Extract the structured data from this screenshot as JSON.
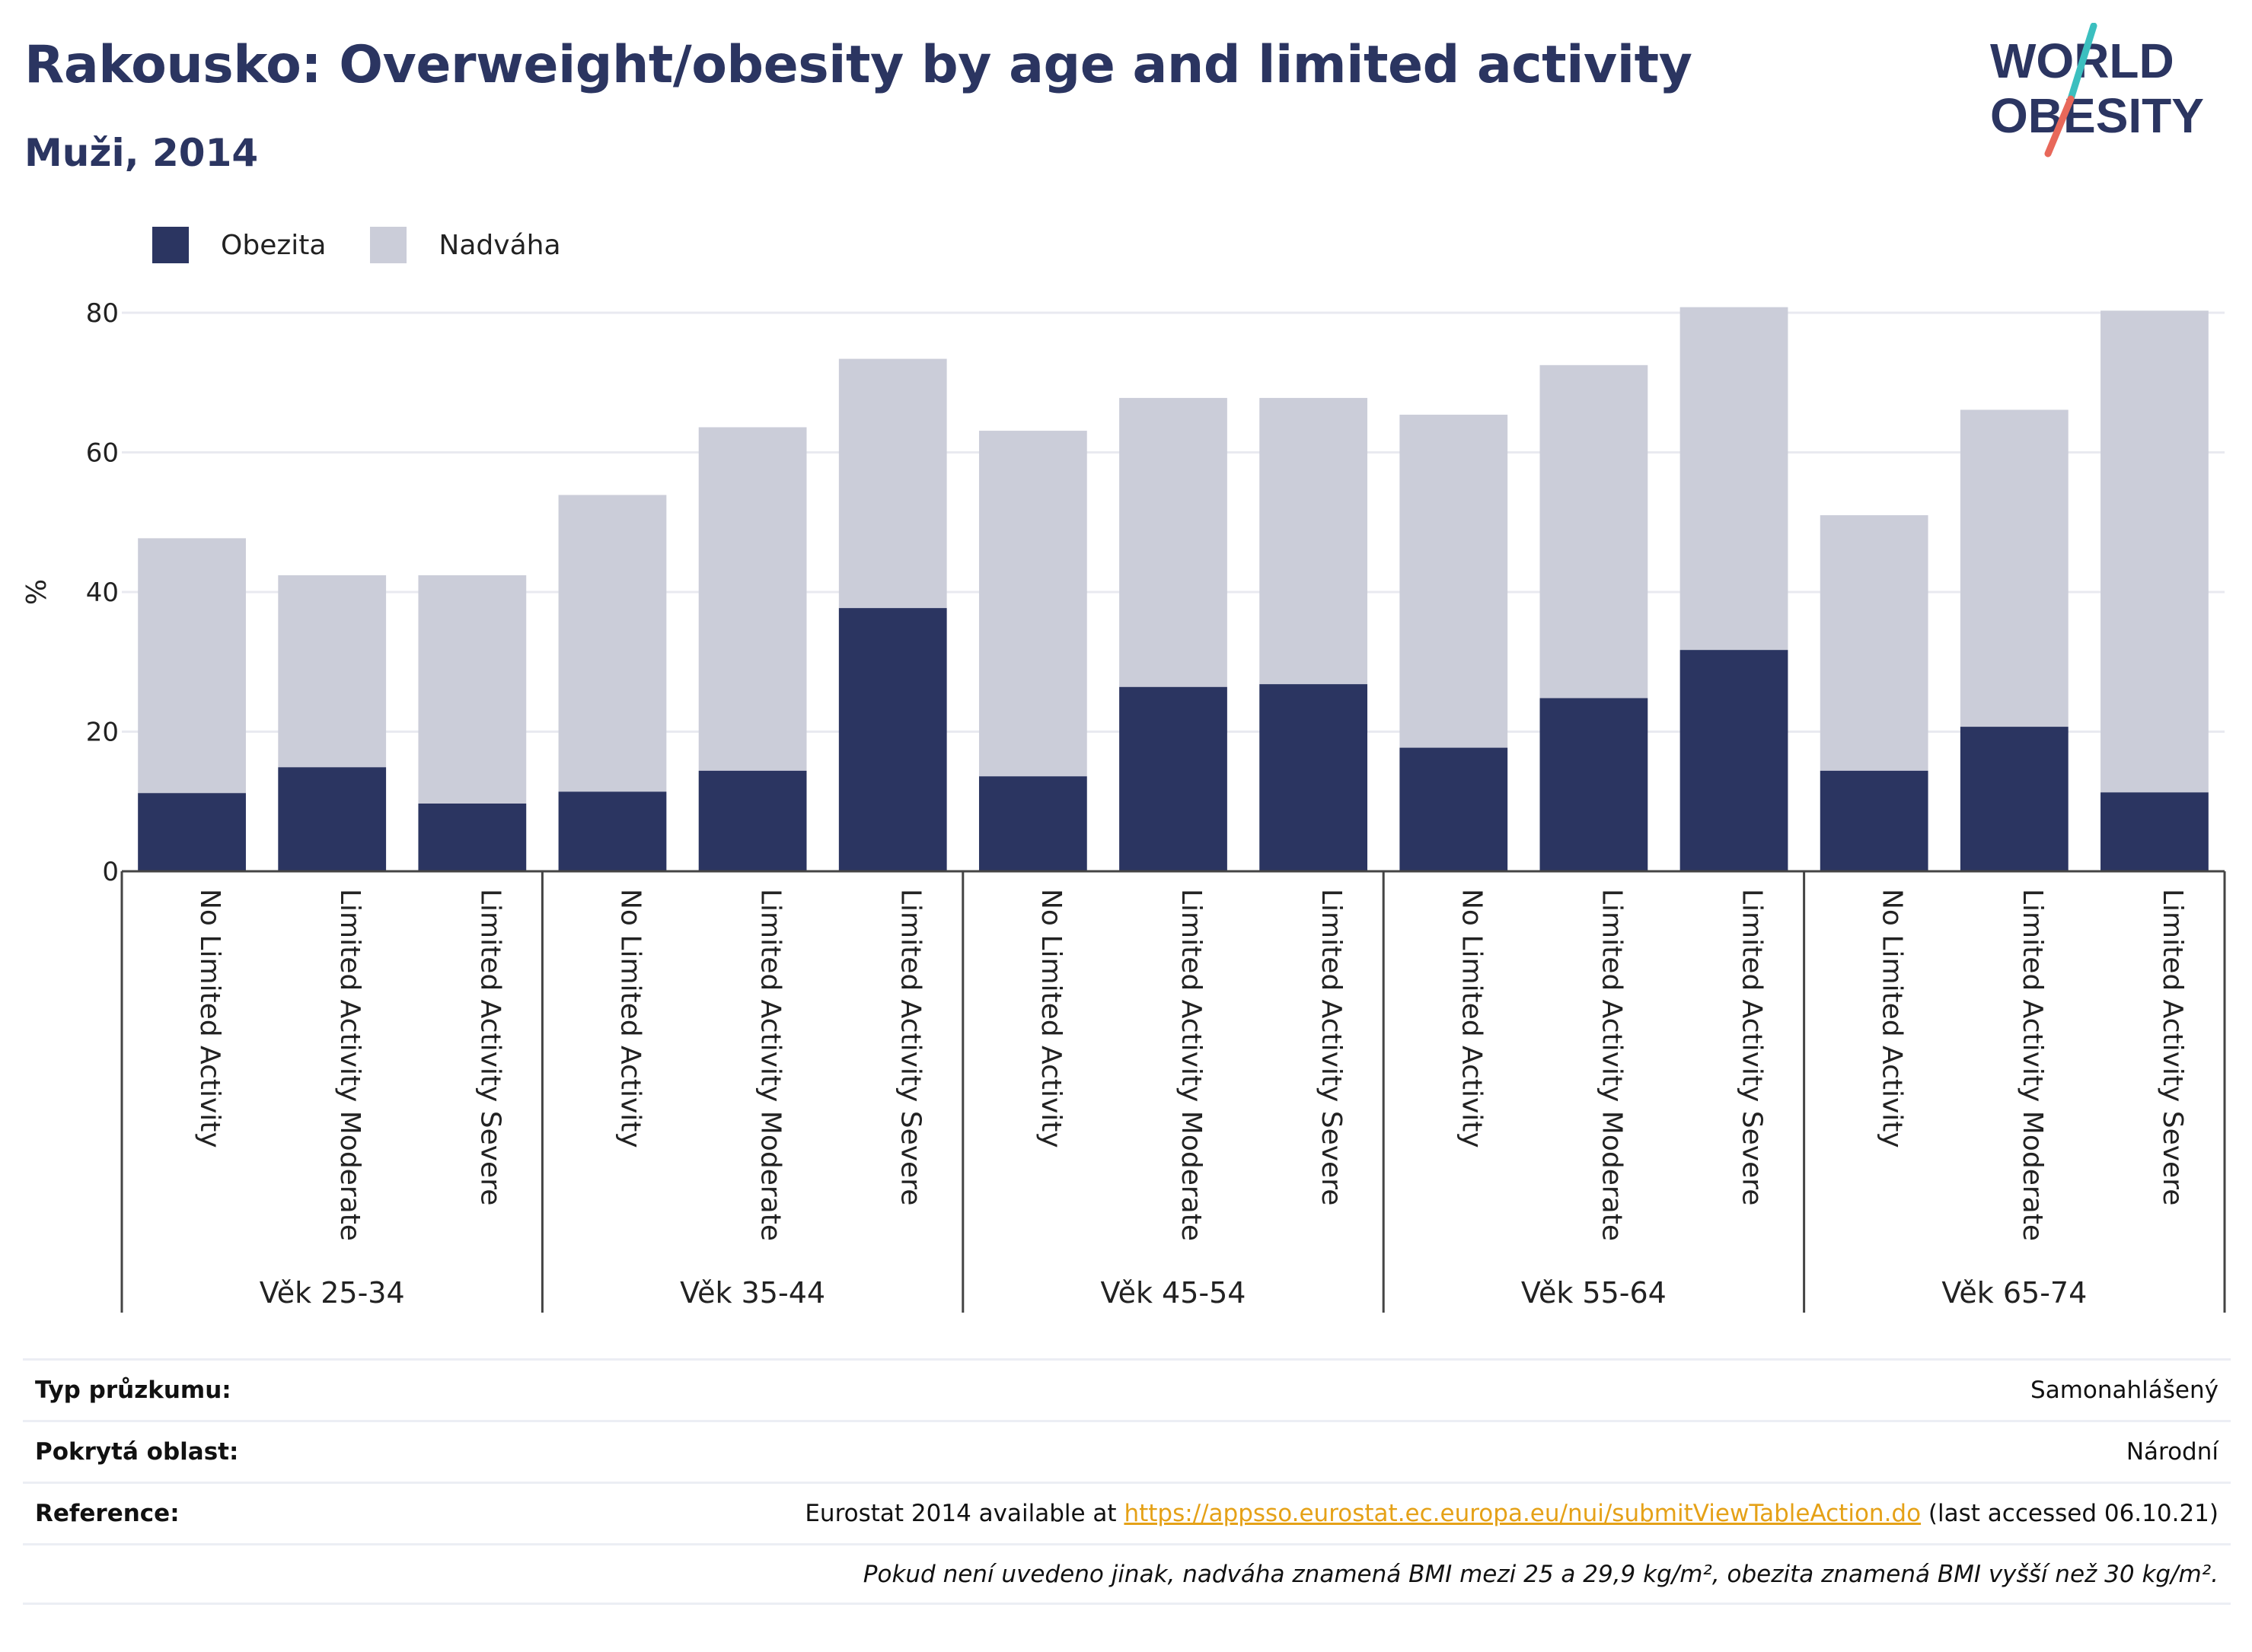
{
  "header": {
    "title": "Rakousko: Overweight/obesity by age and limited activity",
    "subtitle": "Muži, 2014",
    "logo_text": [
      "WORLD",
      "OBESITY"
    ]
  },
  "colors": {
    "obesity": "#2b3561",
    "overweight": "#cbcdd9",
    "title": "#2b3561",
    "link": "#e5a117",
    "logo_slash_top": "#3bbfbf",
    "logo_slash_bottom": "#e8685a"
  },
  "legend": [
    {
      "label": "Obezita",
      "color": "#2b3561"
    },
    {
      "label": "Nadváha",
      "color": "#cbcdd9"
    }
  ],
  "chart_data": {
    "type": "bar",
    "stacked": true,
    "ylabel": "%",
    "ylim": [
      0,
      85
    ],
    "yticks": [
      0,
      20,
      40,
      60,
      80
    ],
    "grid": true,
    "legend_position": "top-left",
    "groups": [
      "Věk 25-34",
      "Věk 35-44",
      "Věk 45-54",
      "Věk 55-64",
      "Věk 65-74"
    ],
    "subcategories": [
      "No Limited Activity",
      "Limited Activity Moderate",
      "Limited Activity Severe"
    ],
    "series": [
      {
        "name": "Obezita",
        "values": [
          11.2,
          14.9,
          9.7,
          11.4,
          14.4,
          37.7,
          13.6,
          26.4,
          26.8,
          17.7,
          24.8,
          31.7,
          14.4,
          20.7,
          11.3
        ]
      },
      {
        "name": "Nadváha",
        "values": [
          36.5,
          27.5,
          32.7,
          42.5,
          49.2,
          35.7,
          49.5,
          41.4,
          41.0,
          47.7,
          47.7,
          49.1,
          36.6,
          45.4,
          69.0
        ]
      }
    ]
  },
  "meta": {
    "survey_label": "Typ průzkumu:",
    "survey_value": "Samonahlášený",
    "area_label": "Pokrytá oblast:",
    "area_value": "Národní",
    "reference_label": "Reference:",
    "reference_prefix": "Eurostat 2014 available at ",
    "reference_link": "https://appsso.eurostat.ec.europa.eu/nui/submitViewTableAction.do",
    "reference_suffix": " (last accessed 06.10.21)",
    "note": "Pokud není uvedeno jinak, nadváha znamená BMI mezi 25 a 29,9 kg/m², obezita znamená BMI vyšší než 30 kg/m²."
  }
}
